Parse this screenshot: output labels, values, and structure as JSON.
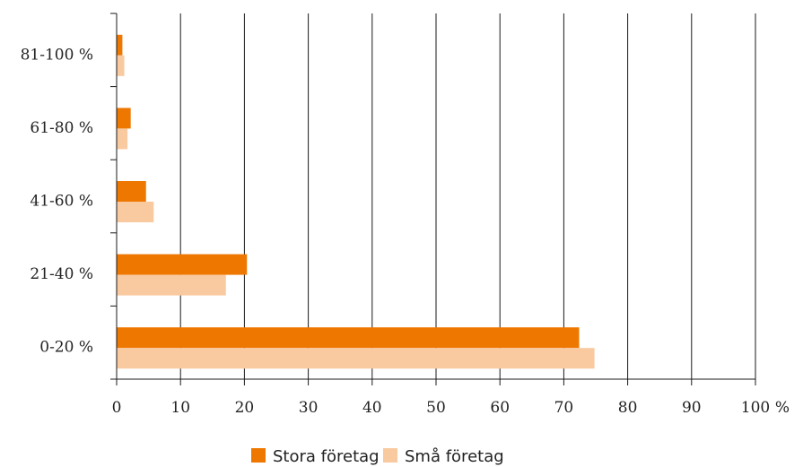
{
  "chart_data": {
    "type": "bar",
    "orientation": "horizontal",
    "categories": [
      "81-100 %",
      "61-80 %",
      "41-60 %",
      "21-40 %",
      "0-20 %"
    ],
    "series": [
      {
        "name": "Stora företag",
        "color": "#ee7700",
        "values": [
          0.9,
          2.2,
          4.6,
          20.4,
          72.4
        ]
      },
      {
        "name": "Små företag",
        "color": "#f9c9a0",
        "values": [
          1.2,
          1.7,
          5.8,
          17.1,
          74.8
        ]
      }
    ],
    "xlim": [
      0,
      100
    ],
    "xticks": [
      0,
      10,
      20,
      30,
      40,
      50,
      60,
      70,
      80,
      90,
      100
    ],
    "xtick_labels": [
      "0",
      "10",
      "20",
      "30",
      "40",
      "50",
      "60",
      "70",
      "80",
      "90",
      "100"
    ],
    "x_unit": "%",
    "grid": "vertical",
    "legend_position": "bottom"
  }
}
